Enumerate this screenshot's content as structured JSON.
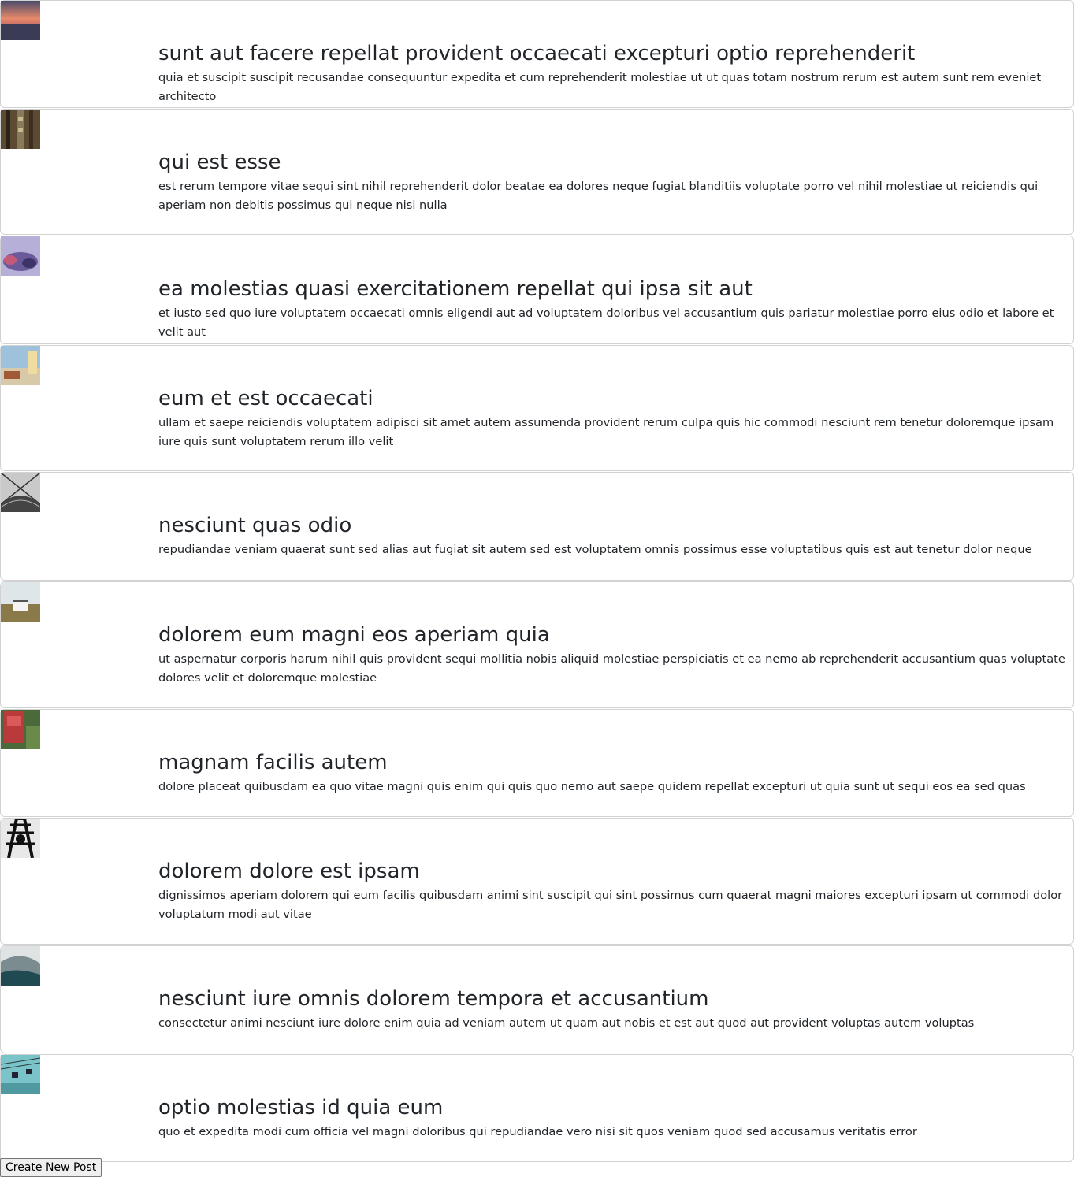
{
  "posts": [
    {
      "title": "sunt aut facere repellat provident occaecati excepturi optio reprehenderit",
      "body": "quia et suscipit suscipit recusandae consequuntur expedita et cum reprehenderit molestiae ut ut quas totam nostrum rerum est autem sunt rem eveniet architecto",
      "thumb": "sunset"
    },
    {
      "title": "qui est esse",
      "body": "est rerum tempore vitae sequi sint nihil reprehenderit dolor beatae ea dolores neque fugiat blanditiis voluptate porro vel nihil molestiae ut reiciendis qui aperiam non debitis possimus qui neque nisi nulla",
      "thumb": "building"
    },
    {
      "title": "ea molestias quasi exercitationem repellat qui ipsa sit aut",
      "body": "et iusto sed quo iure voluptatem occaecati omnis eligendi aut ad voluptatem doloribus vel accusantium quis pariatur molestiae porro eius odio et labore et velit aut",
      "thumb": "purple"
    },
    {
      "title": "eum et est occaecati",
      "body": "ullam et saepe reiciendis voluptatem adipisci sit amet autem assumenda provident rerum culpa quis hic commodi nesciunt rem tenetur doloremque ipsam iure quis sunt voluptatem rerum illo velit",
      "thumb": "coast"
    },
    {
      "title": "nesciunt quas odio",
      "body": "repudiandae veniam quaerat sunt sed alias aut fugiat sit autem sed est voluptatem omnis possimus esse voluptatibus quis est aut tenetur dolor neque",
      "thumb": "bridge"
    },
    {
      "title": "dolorem eum magni eos aperiam quia",
      "body": "ut aspernatur corporis harum nihil quis provident sequi mollitia nobis aliquid molestiae perspiciatis et ea nemo ab reprehenderit accusantium quas voluptate dolores velit et doloremque molestiae",
      "thumb": "field"
    },
    {
      "title": "magnam facilis autem",
      "body": "dolore placeat quibusdam ea quo vitae magni quis enim qui quis quo nemo aut saepe quidem repellat excepturi ut quia sunt ut sequi eos ea sed quas",
      "thumb": "red"
    },
    {
      "title": "dolorem dolore est ipsam",
      "body": "dignissimos aperiam dolorem qui eum facilis quibusdam animi sint suscipit qui sint possimus cum quaerat magni maiores excepturi ipsam ut commodi dolor voluptatum modi aut vitae",
      "thumb": "tower"
    },
    {
      "title": "nesciunt iure omnis dolorem tempora et accusantium",
      "body": "consectetur animi nesciunt iure dolore enim quia ad veniam autem ut quam aut nobis et est aut quod aut provident voluptas autem voluptas",
      "thumb": "mountain"
    },
    {
      "title": "optio molestias id quia eum",
      "body": "quo et expedita modi cum officia vel magni doloribus qui repudiandae vero nisi sit quos veniam quod sed accusamus veritatis error",
      "thumb": "cable"
    }
  ],
  "create_button": {
    "label": "Create New Post"
  },
  "colors": {
    "text": "#212529",
    "card_border": "#d9d9d9",
    "button_bg": "#efefef"
  }
}
